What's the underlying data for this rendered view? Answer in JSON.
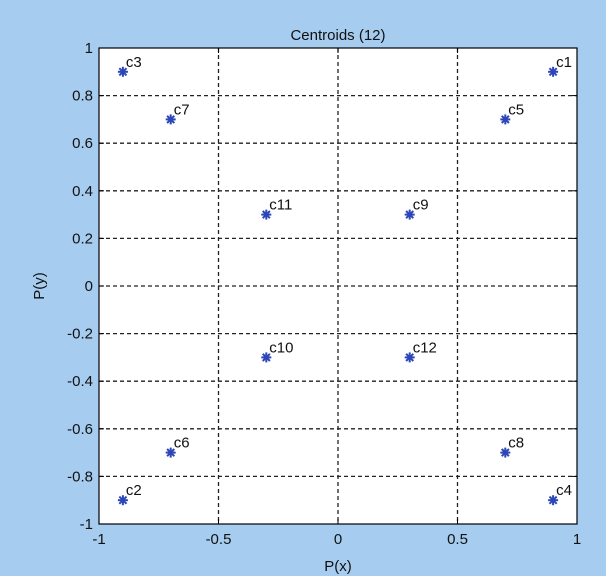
{
  "chart_data": {
    "type": "scatter",
    "title": "Centroids (12)",
    "xlabel": "P(x)",
    "ylabel": "P(y)",
    "xlim": [
      -1,
      1
    ],
    "ylim": [
      -1,
      1
    ],
    "xticks": [
      -1,
      -0.5,
      0,
      0.5,
      1
    ],
    "xtick_labels": [
      "-1",
      "-0.5",
      "0",
      "0.5",
      "1"
    ],
    "yticks": [
      1,
      0.8,
      0.6,
      0.4,
      0.2,
      0,
      -0.2,
      -0.4,
      -0.6,
      -0.8,
      -1
    ],
    "ytick_labels": [
      "1",
      "0.8",
      "0.6",
      "0.4",
      "0.2",
      "0",
      "-0.2",
      "-0.4",
      "-0.6",
      "-0.8",
      "-1"
    ],
    "grid": true,
    "marker": "*",
    "colors": {
      "marker": "#2c46b8",
      "figure_background": "#a6cdef",
      "axes_background": "#ffffff"
    },
    "points": [
      {
        "label": "c1",
        "x": 0.9,
        "y": 0.9
      },
      {
        "label": "c2",
        "x": -0.9,
        "y": -0.9
      },
      {
        "label": "c3",
        "x": -0.9,
        "y": 0.9
      },
      {
        "label": "c4",
        "x": 0.9,
        "y": -0.9
      },
      {
        "label": "c5",
        "x": 0.7,
        "y": 0.7
      },
      {
        "label": "c6",
        "x": -0.7,
        "y": -0.7
      },
      {
        "label": "c7",
        "x": -0.7,
        "y": 0.7
      },
      {
        "label": "c8",
        "x": 0.7,
        "y": -0.7
      },
      {
        "label": "c9",
        "x": 0.3,
        "y": 0.3
      },
      {
        "label": "c10",
        "x": -0.3,
        "y": -0.3
      },
      {
        "label": "c11",
        "x": -0.3,
        "y": 0.3
      },
      {
        "label": "c12",
        "x": 0.3,
        "y": -0.3
      }
    ]
  }
}
